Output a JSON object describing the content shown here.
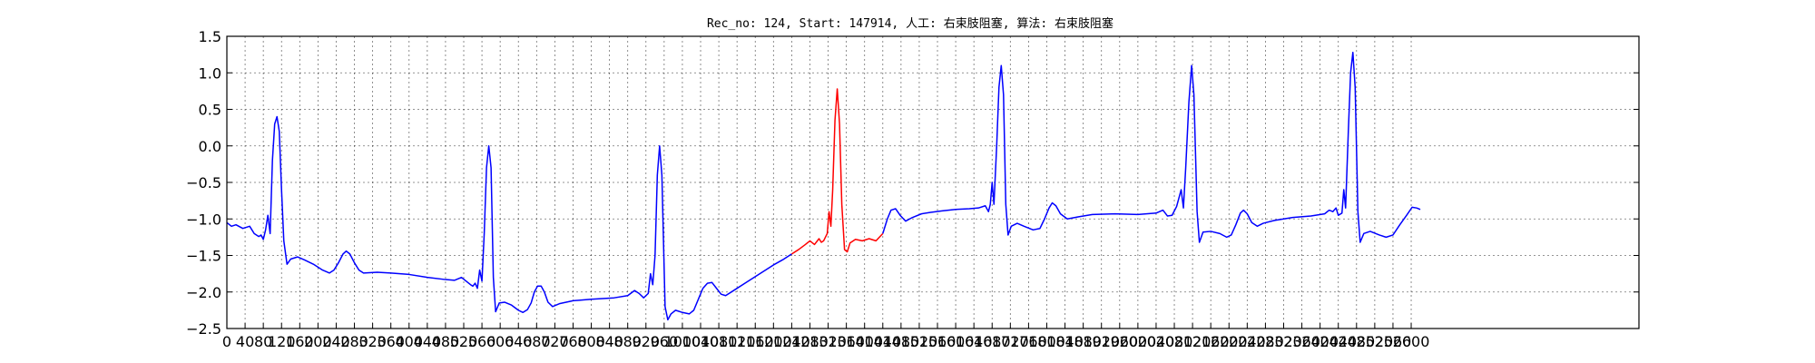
{
  "chart_data": {
    "type": "line",
    "title": "Rec_no: 124, Start: 147914, 人工: 右束肢阻塞, 算法: 右束肢阻塞",
    "xlabel": "",
    "ylabel": "",
    "xlim": [
      0,
      3100
    ],
    "ylim": [
      -2.5,
      1.5
    ],
    "grid": true,
    "x_ticks": [
      0,
      40,
      80,
      120,
      160,
      200,
      240,
      280,
      320,
      360,
      400,
      440,
      480,
      520,
      560,
      600,
      640,
      680,
      720,
      760,
      800,
      840,
      880,
      920,
      960,
      1000,
      1040,
      1080,
      1120,
      1160,
      1200,
      1240,
      1280,
      1320,
      1360,
      1400,
      1440,
      1480,
      1520,
      1560,
      1600,
      1640,
      1680,
      1720,
      1760,
      1800,
      1840,
      1880,
      1920,
      1960,
      2000,
      2040,
      2080,
      2120,
      2160,
      2200,
      2240,
      2280,
      2320,
      2360,
      2400,
      2440,
      2480,
      2520,
      2560,
      2600
    ],
    "x_tick_labels": [
      "0",
      "40",
      "80",
      "120",
      "160",
      "200",
      "240",
      "280",
      "320",
      "360",
      "400",
      "440",
      "480",
      "520",
      "560",
      "600",
      "640",
      "680",
      "720",
      "760",
      "800",
      "840",
      "880",
      "920",
      "960",
      "1000",
      "1040",
      "1080",
      "1120",
      "1160",
      "1200",
      "1240",
      "1280",
      "1320",
      "1360",
      "1400",
      "1440",
      "1480",
      "1520",
      "1560",
      "1600",
      "1640",
      "1680",
      "1720",
      "1760",
      "1800",
      "1840",
      "1880",
      "1920",
      "1960",
      "2000",
      "2040",
      "2080",
      "2120",
      "2160",
      "2200",
      "2240",
      "2280",
      "2320",
      "2360",
      "2400",
      "2440",
      "2480",
      "2520",
      "2560",
      "2600"
    ],
    "y_ticks": [
      -2.5,
      -2.0,
      -1.5,
      -1.0,
      -0.5,
      0.0,
      0.5,
      1.0,
      1.5
    ],
    "y_tick_labels": [
      "−2.5",
      "−2.0",
      "−1.5",
      "−1.0",
      "−0.5",
      "0.0",
      "0.5",
      "1.0",
      "1.5"
    ],
    "highlight_range": [
      1240,
      1440
    ],
    "colors": {
      "signal": "#0000ff",
      "highlight": "#ff0000"
    },
    "series": [
      {
        "values": [
          [
            0,
            -1.05
          ],
          [
            10,
            -1.1
          ],
          [
            20,
            -1.08
          ],
          [
            35,
            -1.13
          ],
          [
            50,
            -1.1
          ],
          [
            60,
            -1.2
          ],
          [
            70,
            -1.24
          ],
          [
            75,
            -1.22
          ],
          [
            80,
            -1.28
          ],
          [
            85,
            -1.15
          ],
          [
            90,
            -0.95
          ],
          [
            95,
            -1.2
          ],
          [
            100,
            -0.2
          ],
          [
            105,
            0.3
          ],
          [
            110,
            0.4
          ],
          [
            115,
            0.2
          ],
          [
            120,
            -0.6
          ],
          [
            125,
            -1.3
          ],
          [
            132,
            -1.62
          ],
          [
            140,
            -1.55
          ],
          [
            155,
            -1.52
          ],
          [
            170,
            -1.56
          ],
          [
            190,
            -1.62
          ],
          [
            210,
            -1.7
          ],
          [
            225,
            -1.74
          ],
          [
            235,
            -1.7
          ],
          [
            245,
            -1.6
          ],
          [
            255,
            -1.48
          ],
          [
            262,
            -1.44
          ],
          [
            270,
            -1.48
          ],
          [
            280,
            -1.6
          ],
          [
            290,
            -1.7
          ],
          [
            300,
            -1.74
          ],
          [
            330,
            -1.73
          ],
          [
            360,
            -1.74
          ],
          [
            400,
            -1.76
          ],
          [
            440,
            -1.8
          ],
          [
            480,
            -1.83
          ],
          [
            500,
            -1.84
          ],
          [
            515,
            -1.8
          ],
          [
            525,
            -1.85
          ],
          [
            535,
            -1.9
          ],
          [
            540,
            -1.92
          ],
          [
            545,
            -1.88
          ],
          [
            550,
            -1.95
          ],
          [
            555,
            -1.7
          ],
          [
            560,
            -1.85
          ],
          [
            565,
            -1.2
          ],
          [
            570,
            -0.3
          ],
          [
            575,
            0.0
          ],
          [
            580,
            -0.3
          ],
          [
            585,
            -1.8
          ],
          [
            590,
            -2.27
          ],
          [
            598,
            -2.15
          ],
          [
            610,
            -2.14
          ],
          [
            625,
            -2.18
          ],
          [
            640,
            -2.25
          ],
          [
            650,
            -2.28
          ],
          [
            660,
            -2.24
          ],
          [
            668,
            -2.15
          ],
          [
            675,
            -2.0
          ],
          [
            682,
            -1.92
          ],
          [
            690,
            -1.92
          ],
          [
            697,
            -2.0
          ],
          [
            705,
            -2.14
          ],
          [
            715,
            -2.2
          ],
          [
            730,
            -2.16
          ],
          [
            760,
            -2.12
          ],
          [
            800,
            -2.1
          ],
          [
            850,
            -2.08
          ],
          [
            880,
            -2.05
          ],
          [
            895,
            -1.98
          ],
          [
            905,
            -2.02
          ],
          [
            915,
            -2.08
          ],
          [
            925,
            -2.02
          ],
          [
            930,
            -1.75
          ],
          [
            935,
            -1.9
          ],
          [
            940,
            -1.5
          ],
          [
            945,
            -0.4
          ],
          [
            950,
            0.0
          ],
          [
            955,
            -0.4
          ],
          [
            962,
            -2.2
          ],
          [
            968,
            -2.38
          ],
          [
            975,
            -2.3
          ],
          [
            985,
            -2.25
          ],
          [
            1000,
            -2.28
          ],
          [
            1015,
            -2.3
          ],
          [
            1025,
            -2.25
          ],
          [
            1035,
            -2.1
          ],
          [
            1045,
            -1.95
          ],
          [
            1055,
            -1.88
          ],
          [
            1065,
            -1.87
          ],
          [
            1075,
            -1.95
          ],
          [
            1085,
            -2.03
          ],
          [
            1095,
            -2.05
          ],
          [
            1110,
            -1.99
          ],
          [
            1140,
            -1.87
          ],
          [
            1170,
            -1.75
          ],
          [
            1200,
            -1.63
          ],
          [
            1220,
            -1.56
          ],
          [
            1240,
            -1.48
          ]
        ]
      },
      {
        "values": [
          [
            1240,
            -1.48
          ],
          [
            1255,
            -1.42
          ],
          [
            1270,
            -1.35
          ],
          [
            1280,
            -1.3
          ],
          [
            1290,
            -1.35
          ],
          [
            1300,
            -1.27
          ],
          [
            1305,
            -1.32
          ],
          [
            1310,
            -1.3
          ],
          [
            1318,
            -1.2
          ],
          [
            1322,
            -0.9
          ],
          [
            1326,
            -1.1
          ],
          [
            1330,
            -0.6
          ],
          [
            1335,
            0.35
          ],
          [
            1340,
            0.78
          ],
          [
            1345,
            0.3
          ],
          [
            1350,
            -0.8
          ],
          [
            1356,
            -1.42
          ],
          [
            1362,
            -1.45
          ],
          [
            1368,
            -1.33
          ],
          [
            1380,
            -1.28
          ],
          [
            1395,
            -1.3
          ],
          [
            1410,
            -1.27
          ],
          [
            1425,
            -1.3
          ],
          [
            1440,
            -1.2
          ]
        ]
      },
      {
        "values": [
          [
            1440,
            -1.2
          ],
          [
            1450,
            -1.0
          ],
          [
            1458,
            -0.88
          ],
          [
            1468,
            -0.86
          ],
          [
            1478,
            -0.95
          ],
          [
            1490,
            -1.03
          ],
          [
            1505,
            -0.98
          ],
          [
            1525,
            -0.93
          ],
          [
            1545,
            -0.91
          ],
          [
            1570,
            -0.89
          ],
          [
            1600,
            -0.87
          ],
          [
            1630,
            -0.86
          ],
          [
            1650,
            -0.85
          ],
          [
            1665,
            -0.82
          ],
          [
            1672,
            -0.9
          ],
          [
            1676,
            -0.8
          ],
          [
            1680,
            -0.5
          ],
          [
            1684,
            -0.8
          ],
          [
            1690,
            0.0
          ],
          [
            1695,
            0.8
          ],
          [
            1700,
            1.1
          ],
          [
            1705,
            0.7
          ],
          [
            1710,
            -0.8
          ],
          [
            1715,
            -1.22
          ],
          [
            1722,
            -1.1
          ],
          [
            1735,
            -1.06
          ],
          [
            1750,
            -1.1
          ],
          [
            1770,
            -1.15
          ],
          [
            1785,
            -1.13
          ],
          [
            1795,
            -1.0
          ],
          [
            1805,
            -0.85
          ],
          [
            1812,
            -0.78
          ],
          [
            1820,
            -0.82
          ],
          [
            1830,
            -0.93
          ],
          [
            1845,
            -1.0
          ],
          [
            1870,
            -0.97
          ],
          [
            1900,
            -0.94
          ],
          [
            1950,
            -0.93
          ],
          [
            2000,
            -0.94
          ],
          [
            2040,
            -0.92
          ],
          [
            2055,
            -0.88
          ],
          [
            2065,
            -0.96
          ],
          [
            2075,
            -0.95
          ],
          [
            2085,
            -0.83
          ],
          [
            2095,
            -0.6
          ],
          [
            2100,
            -0.85
          ],
          [
            2105,
            -0.3
          ],
          [
            2112,
            0.6
          ],
          [
            2118,
            1.1
          ],
          [
            2123,
            0.7
          ],
          [
            2130,
            -0.9
          ],
          [
            2135,
            -1.32
          ],
          [
            2143,
            -1.18
          ],
          [
            2160,
            -1.17
          ],
          [
            2180,
            -1.2
          ],
          [
            2195,
            -1.25
          ],
          [
            2205,
            -1.22
          ],
          [
            2215,
            -1.08
          ],
          [
            2225,
            -0.92
          ],
          [
            2232,
            -0.88
          ],
          [
            2240,
            -0.93
          ],
          [
            2250,
            -1.05
          ],
          [
            2262,
            -1.1
          ],
          [
            2275,
            -1.06
          ],
          [
            2300,
            -1.02
          ],
          [
            2340,
            -0.98
          ],
          [
            2380,
            -0.96
          ],
          [
            2410,
            -0.93
          ],
          [
            2420,
            -0.88
          ],
          [
            2428,
            -0.9
          ],
          [
            2435,
            -0.85
          ],
          [
            2440,
            -0.95
          ],
          [
            2448,
            -0.92
          ],
          [
            2452,
            -0.6
          ],
          [
            2456,
            -0.85
          ],
          [
            2462,
            0.2
          ],
          [
            2467,
            1.0
          ],
          [
            2472,
            1.28
          ],
          [
            2477,
            0.8
          ],
          [
            2483,
            -0.9
          ],
          [
            2488,
            -1.32
          ],
          [
            2496,
            -1.2
          ],
          [
            2510,
            -1.17
          ],
          [
            2530,
            -1.22
          ],
          [
            2545,
            -1.25
          ],
          [
            2560,
            -1.22
          ],
          [
            2575,
            -1.08
          ],
          [
            2590,
            -0.95
          ],
          [
            2602,
            -0.84
          ],
          [
            2612,
            -0.85
          ],
          [
            2620,
            -0.87
          ]
        ]
      }
    ]
  }
}
